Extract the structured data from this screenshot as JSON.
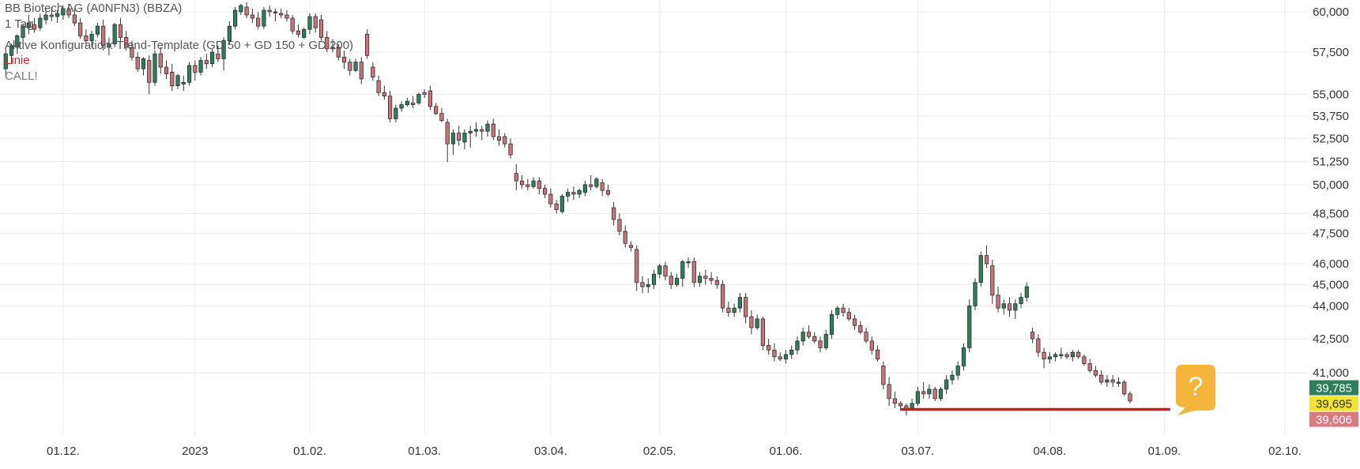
{
  "header": {
    "title": "BB Biotech AG (A0NFN3) (BBZA)",
    "interval": "1 Tag",
    "config": "Aktive Konfiguration: Trend-Template (GD 50 + GD 150 + GD 200)",
    "line_label": "Linie",
    "call_label": "CALL!"
  },
  "badge": {
    "symbol": "?",
    "color": "#f5b43a"
  },
  "chart_data": {
    "type": "candlestick",
    "x_ticks": [
      {
        "label": "01.12.",
        "index": 0
      },
      {
        "label": "2023",
        "index": 23
      },
      {
        "label": "01.02.",
        "index": 43
      },
      {
        "label": "01.03.",
        "index": 63
      },
      {
        "label": "03.04.",
        "index": 85
      },
      {
        "label": "02.05.",
        "index": 104
      },
      {
        "label": "01.06.",
        "index": 126
      },
      {
        "label": "03.07.",
        "index": 149
      },
      {
        "label": "04.08.",
        "index": 172
      },
      {
        "label": "01.09.",
        "index": 192
      },
      {
        "label": "02.10.",
        "index": 213
      }
    ],
    "x_index_range": [
      -11,
      217
    ],
    "y_ticks": [
      60.0,
      57.5,
      55.0,
      53.75,
      52.5,
      51.25,
      50.0,
      48.5,
      47.5,
      46.0,
      45.0,
      44.0,
      42.5,
      41.0
    ],
    "y_tick_labels": [
      "60,000",
      "57,500",
      "55,000",
      "53,750",
      "52,500",
      "51,250",
      "50,000",
      "48,500",
      "47,500",
      "46,000",
      "45,000",
      "44,000",
      "42,500",
      "41,000"
    ],
    "ylim": [
      38.75,
      60.5
    ],
    "y_scale": "log",
    "grid": true,
    "support_line": {
      "value": 39.45,
      "from_index": 146,
      "to_index": 193,
      "color": "#c41e1e"
    },
    "price_labels": [
      {
        "value": 39.785,
        "label": "39,785",
        "bg": "#2e7d5b",
        "fg": "#ffffff"
      },
      {
        "value": 39.695,
        "label": "39,695",
        "bg": "#f1e332",
        "fg": "#333333"
      },
      {
        "value": 39.606,
        "label": "39,606",
        "bg": "#d97a80",
        "fg": "#ffffff"
      }
    ],
    "colors": {
      "up": "#2e7d5b",
      "down": "#c9727a",
      "wick": "#333333"
    },
    "ohlc": [
      [
        -10,
        56.5,
        57.8,
        56.0,
        57.4
      ],
      [
        -9,
        57.3,
        58.0,
        56.8,
        57.9
      ],
      [
        -8,
        57.8,
        58.6,
        57.4,
        58.5
      ],
      [
        -7,
        58.4,
        59.2,
        58.0,
        59.1
      ],
      [
        -6,
        59.0,
        59.8,
        58.6,
        59.3
      ],
      [
        -5,
        59.2,
        59.6,
        58.7,
        58.9
      ],
      [
        -4,
        59.0,
        59.9,
        58.8,
        59.6
      ],
      [
        -3,
        59.5,
        60.2,
        59.2,
        59.8
      ],
      [
        -2,
        59.8,
        60.3,
        59.4,
        59.7
      ],
      [
        -1,
        59.7,
        60.1,
        59.3,
        59.9
      ],
      [
        0,
        59.8,
        60.4,
        59.5,
        60.2
      ],
      [
        1,
        60.1,
        60.5,
        59.6,
        59.8
      ],
      [
        2,
        59.8,
        60.2,
        59.1,
        59.3
      ],
      [
        3,
        59.3,
        59.6,
        58.3,
        58.5
      ],
      [
        4,
        58.5,
        58.9,
        57.9,
        58.2
      ],
      [
        5,
        58.2,
        58.8,
        57.8,
        58.6
      ],
      [
        6,
        58.6,
        59.3,
        58.4,
        59.1
      ],
      [
        7,
        59.1,
        59.5,
        57.6,
        57.9
      ],
      [
        8,
        57.8,
        58.4,
        57.3,
        58.0
      ],
      [
        9,
        58.0,
        59.3,
        57.8,
        59.2
      ],
      [
        10,
        59.2,
        59.6,
        58.1,
        58.4
      ],
      [
        11,
        58.4,
        58.8,
        57.6,
        57.8
      ],
      [
        12,
        57.8,
        58.2,
        57.0,
        57.2
      ],
      [
        13,
        57.2,
        57.5,
        56.3,
        56.5
      ],
      [
        14,
        56.5,
        57.2,
        56.1,
        57.1
      ],
      [
        15,
        57.0,
        57.3,
        55.0,
        55.7
      ],
      [
        16,
        55.7,
        57.6,
        55.5,
        57.4
      ],
      [
        17,
        57.4,
        57.8,
        56.2,
        56.6
      ],
      [
        18,
        56.6,
        57.0,
        55.9,
        56.2
      ],
      [
        19,
        56.3,
        56.8,
        55.2,
        55.5
      ],
      [
        20,
        55.5,
        56.2,
        55.3,
        56.1
      ],
      [
        21,
        55.6,
        56.1,
        55.2,
        55.7
      ],
      [
        22,
        55.7,
        56.9,
        55.5,
        56.7
      ],
      [
        23,
        56.7,
        57.0,
        55.8,
        56.3
      ],
      [
        24,
        56.3,
        57.2,
        56.1,
        57.0
      ],
      [
        25,
        57.0,
        57.4,
        56.5,
        56.8
      ],
      [
        26,
        56.8,
        57.7,
        56.6,
        57.5
      ],
      [
        27,
        57.4,
        57.9,
        56.9,
        57.1
      ],
      [
        28,
        57.1,
        58.4,
        56.4,
        58.2
      ],
      [
        29,
        58.2,
        59.4,
        58.0,
        59.1
      ],
      [
        30,
        59.1,
        60.3,
        58.9,
        60.1
      ],
      [
        31,
        60.0,
        60.5,
        59.8,
        60.4
      ],
      [
        32,
        60.3,
        60.6,
        59.6,
        59.8
      ],
      [
        33,
        59.8,
        60.2,
        59.3,
        59.6
      ],
      [
        34,
        59.6,
        60.0,
        58.9,
        59.1
      ],
      [
        35,
        59.1,
        60.3,
        58.9,
        60.1
      ],
      [
        36,
        60.1,
        60.4,
        59.7,
        60.0
      ],
      [
        37,
        60.0,
        60.2,
        59.4,
        60.0
      ],
      [
        38,
        59.9,
        60.2,
        59.6,
        59.8
      ],
      [
        39,
        59.8,
        60.1,
        59.4,
        59.6
      ],
      [
        40,
        59.6,
        59.8,
        58.6,
        58.8
      ],
      [
        41,
        58.8,
        59.2,
        58.4,
        58.6
      ],
      [
        42,
        58.4,
        59.0,
        58.3,
        58.9
      ],
      [
        43,
        58.9,
        59.9,
        58.6,
        59.7
      ],
      [
        44,
        59.7,
        59.9,
        58.7,
        59.0
      ],
      [
        45,
        59.5,
        59.8,
        58.2,
        58.4
      ],
      [
        46,
        58.4,
        58.8,
        57.5,
        57.7
      ],
      [
        47,
        57.7,
        58.3,
        57.5,
        57.8
      ],
      [
        48,
        57.8,
        58.0,
        57.0,
        57.2
      ],
      [
        49,
        57.2,
        57.6,
        56.5,
        56.9
      ],
      [
        50,
        56.9,
        57.1,
        56.1,
        56.4
      ],
      [
        51,
        56.4,
        57.1,
        56.3,
        56.9
      ],
      [
        52,
        56.9,
        57.2,
        55.6,
        55.9
      ],
      [
        53,
        58.6,
        58.9,
        57.1,
        57.3
      ],
      [
        54,
        56.6,
        56.9,
        55.8,
        56.0
      ],
      [
        55,
        55.8,
        56.1,
        54.9,
        55.1
      ],
      [
        56,
        55.1,
        55.5,
        54.7,
        54.9
      ],
      [
        57,
        54.9,
        55.2,
        53.4,
        53.6
      ],
      [
        58,
        53.6,
        54.4,
        53.4,
        54.2
      ],
      [
        59,
        54.2,
        54.6,
        54.0,
        54.4
      ],
      [
        60,
        54.4,
        54.8,
        54.3,
        54.6
      ],
      [
        61,
        54.5,
        54.9,
        54.2,
        54.4
      ],
      [
        62,
        54.5,
        55.1,
        54.4,
        55.0
      ],
      [
        63,
        55.1,
        55.3,
        54.8,
        55.0
      ],
      [
        64,
        55.2,
        55.5,
        54.1,
        54.3
      ],
      [
        65,
        54.3,
        54.5,
        53.8,
        53.9
      ],
      [
        66,
        53.9,
        54.2,
        53.4,
        53.5
      ],
      [
        67,
        53.4,
        53.6,
        51.2,
        52.2
      ],
      [
        68,
        52.2,
        53.0,
        51.6,
        52.8
      ],
      [
        69,
        52.8,
        53.2,
        52.1,
        52.4
      ],
      [
        70,
        52.3,
        53.0,
        51.9,
        52.8
      ],
      [
        71,
        52.8,
        53.2,
        52.0,
        52.9
      ],
      [
        72,
        52.9,
        53.4,
        52.6,
        53.0
      ],
      [
        73,
        53.0,
        53.2,
        52.4,
        52.9
      ],
      [
        74,
        52.9,
        53.5,
        52.6,
        53.3
      ],
      [
        75,
        53.3,
        53.6,
        52.4,
        52.6
      ],
      [
        76,
        52.6,
        53.0,
        52.1,
        52.4
      ],
      [
        77,
        52.6,
        52.8,
        52.0,
        52.2
      ],
      [
        78,
        52.2,
        52.5,
        51.4,
        51.6
      ],
      [
        79,
        50.6,
        51.1,
        49.7,
        50.2
      ],
      [
        80,
        50.2,
        50.5,
        49.8,
        50.0
      ],
      [
        81,
        50.0,
        50.3,
        49.7,
        49.9
      ],
      [
        82,
        49.9,
        50.4,
        49.8,
        50.2
      ],
      [
        83,
        50.2,
        50.4,
        49.5,
        49.8
      ],
      [
        84,
        49.8,
        50.0,
        49.3,
        49.5
      ],
      [
        85,
        49.5,
        49.8,
        48.8,
        49.0
      ],
      [
        86,
        49.0,
        49.2,
        48.5,
        48.7
      ],
      [
        87,
        48.6,
        49.5,
        48.5,
        49.4
      ],
      [
        88,
        49.4,
        49.8,
        49.1,
        49.6
      ],
      [
        89,
        49.6,
        49.9,
        49.2,
        49.5
      ],
      [
        90,
        49.5,
        49.8,
        49.3,
        49.7
      ],
      [
        91,
        49.6,
        50.2,
        49.4,
        50.0
      ],
      [
        92,
        50.0,
        50.5,
        49.7,
        49.9
      ],
      [
        93,
        49.9,
        50.4,
        49.8,
        50.3
      ],
      [
        94,
        50.1,
        50.3,
        49.4,
        49.7
      ],
      [
        95,
        49.7,
        50.0,
        49.4,
        49.5
      ],
      [
        96,
        48.8,
        49.1,
        47.9,
        48.2
      ],
      [
        97,
        48.2,
        48.5,
        47.4,
        47.6
      ],
      [
        98,
        47.6,
        47.9,
        46.8,
        47.0
      ],
      [
        99,
        46.9,
        47.1,
        46.6,
        46.8
      ],
      [
        100,
        46.7,
        46.9,
        44.7,
        45.1
      ],
      [
        101,
        45.1,
        45.4,
        44.6,
        44.9
      ],
      [
        102,
        44.9,
        45.3,
        44.6,
        45.0
      ],
      [
        103,
        45.0,
        45.7,
        44.8,
        45.5
      ],
      [
        104,
        45.5,
        46.0,
        45.3,
        45.9
      ],
      [
        105,
        45.9,
        46.1,
        45.2,
        45.4
      ],
      [
        106,
        45.4,
        45.6,
        44.8,
        45.0
      ],
      [
        107,
        45.0,
        45.5,
        44.9,
        45.3
      ],
      [
        108,
        45.3,
        46.2,
        44.9,
        46.1
      ],
      [
        109,
        46.1,
        46.3,
        45.8,
        46.1
      ],
      [
        110,
        46.1,
        46.3,
        44.9,
        45.1
      ],
      [
        111,
        45.1,
        45.6,
        44.9,
        45.4
      ],
      [
        112,
        45.4,
        45.7,
        45.0,
        45.3
      ],
      [
        113,
        45.3,
        45.6,
        45.0,
        45.2
      ],
      [
        114,
        45.2,
        45.4,
        44.8,
        45.0
      ],
      [
        115,
        45.0,
        45.2,
        43.7,
        43.9
      ],
      [
        116,
        43.9,
        44.2,
        43.5,
        43.7
      ],
      [
        117,
        43.7,
        44.1,
        43.5,
        43.9
      ],
      [
        118,
        43.9,
        44.6,
        43.7,
        44.4
      ],
      [
        119,
        44.4,
        44.6,
        43.2,
        43.5
      ],
      [
        120,
        43.5,
        43.8,
        42.7,
        43.0
      ],
      [
        121,
        43.0,
        43.6,
        42.9,
        43.4
      ],
      [
        122,
        43.4,
        43.5,
        42.0,
        42.2
      ],
      [
        123,
        42.2,
        42.5,
        41.8,
        42.0
      ],
      [
        124,
        42.0,
        42.3,
        41.5,
        41.7
      ],
      [
        125,
        41.7,
        41.9,
        41.5,
        41.6
      ],
      [
        126,
        41.6,
        42.0,
        41.4,
        41.8
      ],
      [
        127,
        41.8,
        42.2,
        41.6,
        42.0
      ],
      [
        128,
        42.0,
        42.6,
        41.8,
        42.4
      ],
      [
        129,
        42.4,
        43.0,
        42.2,
        42.8
      ],
      [
        130,
        42.8,
        43.1,
        42.5,
        42.6
      ],
      [
        131,
        42.6,
        42.8,
        42.3,
        42.4
      ],
      [
        132,
        42.4,
        42.6,
        41.9,
        42.1
      ],
      [
        133,
        42.1,
        42.9,
        42.0,
        42.7
      ],
      [
        134,
        42.7,
        43.8,
        42.5,
        43.6
      ],
      [
        135,
        43.6,
        44.0,
        43.4,
        43.9
      ],
      [
        136,
        43.9,
        44.1,
        43.5,
        43.7
      ],
      [
        137,
        43.7,
        43.9,
        43.3,
        43.4
      ],
      [
        138,
        43.4,
        43.6,
        42.9,
        43.1
      ],
      [
        139,
        43.1,
        43.3,
        42.7,
        42.8
      ],
      [
        140,
        42.8,
        43.0,
        42.3,
        42.4
      ],
      [
        141,
        42.4,
        42.6,
        41.8,
        42.0
      ],
      [
        142,
        42.0,
        42.2,
        41.5,
        41.6
      ],
      [
        143,
        41.3,
        41.5,
        40.3,
        40.5
      ],
      [
        144,
        40.5,
        40.8,
        39.6,
        39.9
      ],
      [
        145,
        39.9,
        40.2,
        39.5,
        39.7
      ],
      [
        146,
        39.7,
        39.8,
        39.4,
        39.6
      ],
      [
        147,
        39.6,
        39.7,
        39.2,
        39.5
      ],
      [
        148,
        39.5,
        39.9,
        39.4,
        39.7
      ],
      [
        149,
        39.7,
        40.4,
        39.6,
        40.2
      ],
      [
        150,
        40.2,
        40.6,
        39.9,
        40.1
      ],
      [
        151,
        40.1,
        40.5,
        39.9,
        40.3
      ],
      [
        152,
        40.3,
        40.4,
        39.8,
        39.9
      ],
      [
        153,
        39.9,
        40.4,
        39.8,
        40.3
      ],
      [
        154,
        40.3,
        40.9,
        40.1,
        40.7
      ],
      [
        155,
        40.7,
        41.1,
        40.5,
        40.9
      ],
      [
        156,
        40.9,
        41.5,
        40.7,
        41.3
      ],
      [
        157,
        41.3,
        42.3,
        41.1,
        42.1
      ],
      [
        158,
        42.1,
        44.3,
        41.9,
        44.0
      ],
      [
        159,
        44.0,
        45.3,
        43.8,
        45.1
      ],
      [
        160,
        45.1,
        46.6,
        44.9,
        46.4
      ],
      [
        161,
        46.4,
        46.9,
        45.8,
        46.0
      ],
      [
        162,
        45.9,
        46.2,
        44.1,
        44.5
      ],
      [
        163,
        44.5,
        44.9,
        43.7,
        43.9
      ],
      [
        164,
        43.9,
        44.3,
        43.6,
        44.1
      ],
      [
        165,
        44.1,
        44.4,
        43.5,
        43.8
      ],
      [
        166,
        43.8,
        44.3,
        43.4,
        44.1
      ],
      [
        167,
        44.1,
        44.6,
        43.9,
        44.4
      ],
      [
        168,
        44.4,
        45.1,
        44.2,
        44.9
      ],
      [
        169,
        42.8,
        43.0,
        42.3,
        42.5
      ],
      [
        170,
        42.5,
        42.7,
        41.7,
        41.9
      ],
      [
        171,
        41.9,
        42.1,
        41.2,
        41.6
      ],
      [
        172,
        41.6,
        41.9,
        41.4,
        41.7
      ],
      [
        173,
        41.7,
        41.9,
        41.5,
        41.8
      ],
      [
        174,
        41.8,
        42.1,
        41.6,
        41.8
      ],
      [
        175,
        41.8,
        41.9,
        41.6,
        41.7
      ],
      [
        176,
        41.7,
        42.0,
        41.5,
        41.9
      ],
      [
        177,
        41.9,
        42.0,
        41.6,
        41.7
      ],
      [
        178,
        41.7,
        41.8,
        41.3,
        41.4
      ],
      [
        179,
        41.4,
        41.6,
        41.0,
        41.1
      ],
      [
        180,
        41.1,
        41.3,
        40.8,
        40.9
      ],
      [
        181,
        40.9,
        41.1,
        40.5,
        40.6
      ],
      [
        182,
        40.6,
        40.9,
        40.4,
        40.7
      ],
      [
        183,
        40.7,
        40.9,
        40.4,
        40.6
      ],
      [
        184,
        40.6,
        40.8,
        40.4,
        40.6
      ],
      [
        185,
        40.6,
        40.7,
        40.0,
        40.1
      ],
      [
        186,
        40.1,
        40.2,
        39.7,
        39.8
      ]
    ]
  }
}
